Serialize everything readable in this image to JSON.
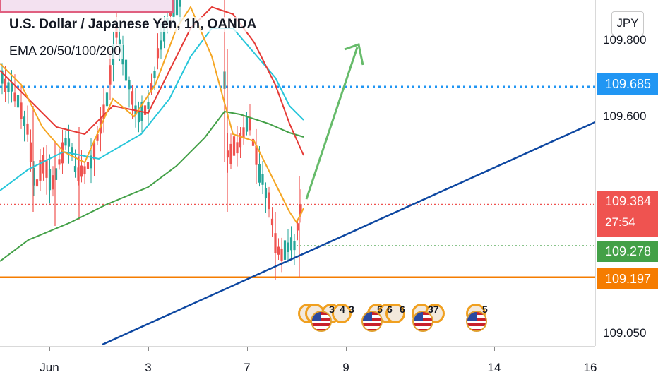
{
  "pane": {
    "title": "U.S. Dollar / Japanese Yen, 1h, OANDA",
    "indicator": "EMA 20/50/100/200",
    "currency": "JPY"
  },
  "price_axis": {
    "ticks": [
      "109.800",
      "109.600",
      "109.050"
    ],
    "tags": [
      {
        "id": "resistance",
        "label": "109.685",
        "color": "#2196f3"
      },
      {
        "id": "last-price",
        "label": "109.384",
        "sub": "27:54",
        "color": "#ef5350"
      },
      {
        "id": "support-green",
        "label": "109.278",
        "color": "#43a047"
      },
      {
        "id": "support-orange",
        "label": "109.197",
        "color": "#f57c00"
      }
    ]
  },
  "time_axis": {
    "labels": [
      "Jun",
      "3",
      "7",
      "9",
      "14",
      "16"
    ]
  },
  "events": {
    "numbers": [
      "3",
      "4",
      "3",
      "5",
      "6",
      "6",
      "37",
      "5"
    ]
  },
  "colors": {
    "ema20": "#f5a623",
    "ema50": "#e53935",
    "ema100": "#26c6da",
    "ema200": "#43a047",
    "trendline": "#0d47a1",
    "arrow": "#66bb6a",
    "up_candle": "#26a69a",
    "down_candle": "#ef5350"
  },
  "chart_data": {
    "type": "candlestick",
    "symbol": "USDJPY",
    "timeframe": "1h",
    "levels": {
      "resistance_dotted": 109.685,
      "last_price": 109.384,
      "green_dotted": 109.278,
      "orange_support": 109.197
    },
    "trendline": {
      "from": [
        "Jun 1",
        109.05
      ],
      "to": [
        "Jun 16",
        109.58
      ]
    },
    "projection_arrow": {
      "from": [
        "Jun 8",
        109.39
      ],
      "to": [
        "Jun 9",
        109.78
      ]
    }
  }
}
